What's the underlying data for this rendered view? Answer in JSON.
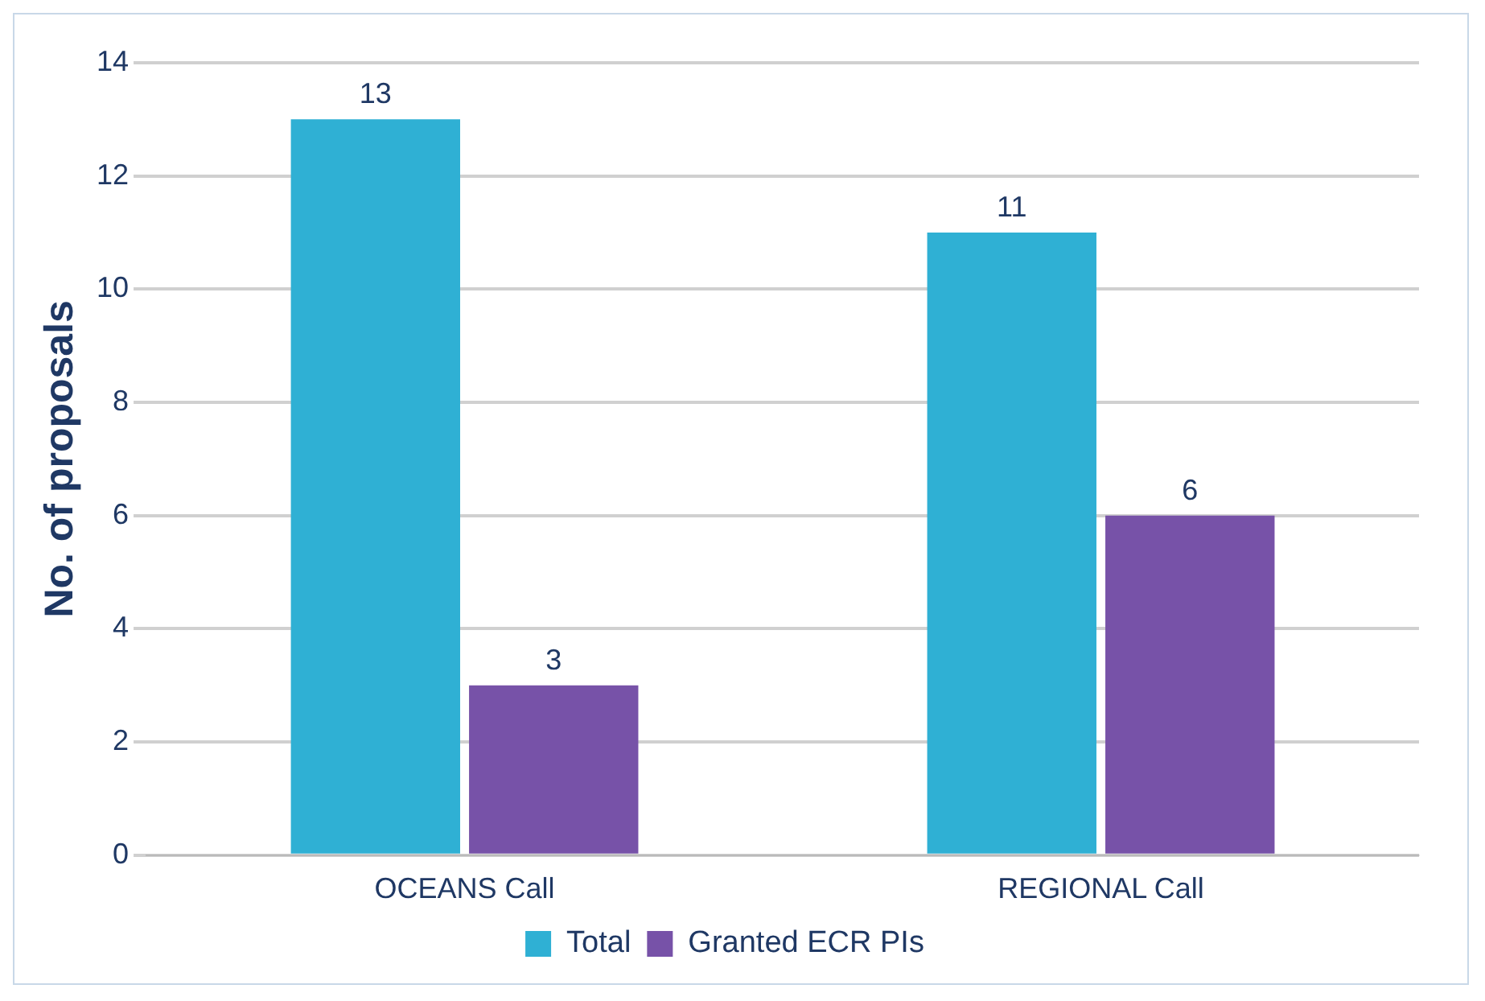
{
  "chart_data": {
    "type": "bar",
    "ylabel": "No. of proposals",
    "categories": [
      "OCEANS Call",
      "REGIONAL Call"
    ],
    "series": [
      {
        "name": "Total",
        "color": "#2fb0d4",
        "values": [
          13,
          11
        ]
      },
      {
        "name": "Granted ECR PIs",
        "color": "#7752a8",
        "values": [
          3,
          6
        ]
      }
    ],
    "ylim": [
      0,
      14
    ],
    "yticks": [
      0,
      2,
      4,
      6,
      8,
      10,
      12,
      14
    ],
    "grid": "y",
    "legend": "bottom",
    "data_labels": true
  }
}
